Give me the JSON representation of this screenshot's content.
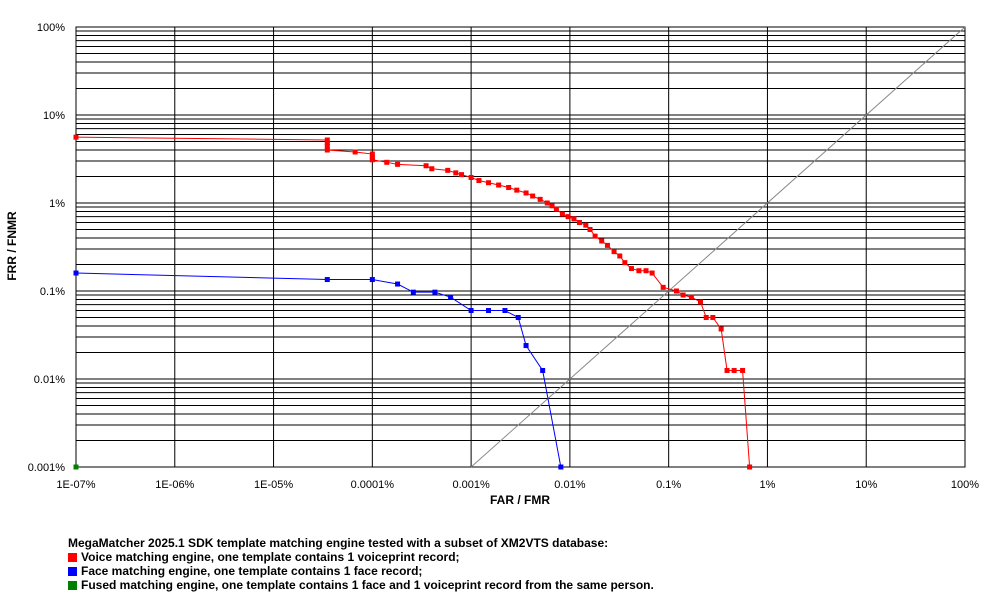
{
  "chart_data": {
    "type": "line",
    "xlabel": "FAR / FMR",
    "ylabel": "FRR / FNMR",
    "x_scale": "log",
    "y_scale": "log",
    "xlim": [
      1e-07,
      100
    ],
    "ylim": [
      0.001,
      100
    ],
    "x_ticks": [
      {
        "value": 1e-07,
        "label": "1E-07%"
      },
      {
        "value": 1e-06,
        "label": "1E-06%"
      },
      {
        "value": 1e-05,
        "label": "1E-05%"
      },
      {
        "value": 0.0001,
        "label": "0.0001%"
      },
      {
        "value": 0.001,
        "label": "0.001%"
      },
      {
        "value": 0.01,
        "label": "0.01%"
      },
      {
        "value": 0.1,
        "label": "0.1%"
      },
      {
        "value": 1,
        "label": "1%"
      },
      {
        "value": 10,
        "label": "10%"
      },
      {
        "value": 100,
        "label": "100%"
      }
    ],
    "y_ticks": [
      {
        "value": 0.001,
        "label": "0.001%"
      },
      {
        "value": 0.01,
        "label": "0.01%"
      },
      {
        "value": 0.1,
        "label": "0.1%"
      },
      {
        "value": 1,
        "label": "1%"
      },
      {
        "value": 10,
        "label": "10%"
      },
      {
        "value": 100,
        "label": "100%"
      }
    ],
    "grid": true,
    "diagonal_reference": true,
    "series": [
      {
        "name": "Voice matching engine, one template contains 1 voiceprint record;",
        "color": "#ff0000",
        "points": [
          [
            1e-07,
            5.6
          ],
          [
            3.5e-05,
            5.2
          ],
          [
            3.5e-05,
            4.8
          ],
          [
            3.5e-05,
            4.4
          ],
          [
            3.5e-05,
            4.0
          ],
          [
            6.7e-05,
            3.8
          ],
          [
            0.0001,
            3.6
          ],
          [
            0.0001,
            3.3
          ],
          [
            0.0001,
            3.1
          ],
          [
            0.00014,
            2.9
          ],
          [
            0.00018,
            2.75
          ],
          [
            0.00035,
            2.65
          ],
          [
            0.0004,
            2.45
          ],
          [
            0.00058,
            2.35
          ],
          [
            0.0007,
            2.2
          ],
          [
            0.0008,
            2.1
          ],
          [
            0.001,
            1.95
          ],
          [
            0.0012,
            1.8
          ],
          [
            0.0015,
            1.7
          ],
          [
            0.0019,
            1.6
          ],
          [
            0.0024,
            1.5
          ],
          [
            0.0029,
            1.4
          ],
          [
            0.0036,
            1.3
          ],
          [
            0.0042,
            1.2
          ],
          [
            0.005,
            1.1
          ],
          [
            0.0059,
            1.0
          ],
          [
            0.0066,
            0.93
          ],
          [
            0.0073,
            0.85
          ],
          [
            0.0084,
            0.75
          ],
          [
            0.0096,
            0.7
          ],
          [
            0.011,
            0.66
          ],
          [
            0.0125,
            0.6
          ],
          [
            0.0145,
            0.56
          ],
          [
            0.016,
            0.5
          ],
          [
            0.018,
            0.42
          ],
          [
            0.021,
            0.37
          ],
          [
            0.024,
            0.33
          ],
          [
            0.028,
            0.28
          ],
          [
            0.032,
            0.25
          ],
          [
            0.036,
            0.21
          ],
          [
            0.042,
            0.18
          ],
          [
            0.05,
            0.17
          ],
          [
            0.059,
            0.17
          ],
          [
            0.068,
            0.16
          ],
          [
            0.088,
            0.11
          ],
          [
            0.12,
            0.1
          ],
          [
            0.14,
            0.09
          ],
          [
            0.17,
            0.085
          ],
          [
            0.21,
            0.075
          ],
          [
            0.24,
            0.05
          ],
          [
            0.28,
            0.05
          ],
          [
            0.34,
            0.037
          ],
          [
            0.39,
            0.0125
          ],
          [
            0.46,
            0.0125
          ],
          [
            0.56,
            0.0125
          ],
          [
            0.66,
            0.001
          ]
        ]
      },
      {
        "name": "Face matching engine, one template contains 1 face record;",
        "color": "#0000ff",
        "points": [
          [
            1e-07,
            0.16
          ],
          [
            3.5e-05,
            0.135
          ],
          [
            0.0001,
            0.135
          ],
          [
            0.00018,
            0.12
          ],
          [
            0.00026,
            0.097
          ],
          [
            0.00043,
            0.097
          ],
          [
            0.00062,
            0.085
          ],
          [
            0.001,
            0.06
          ],
          [
            0.0015,
            0.06
          ],
          [
            0.0022,
            0.06
          ],
          [
            0.003,
            0.05
          ],
          [
            0.0036,
            0.024
          ],
          [
            0.0053,
            0.0125
          ],
          [
            0.0081,
            0.001
          ]
        ]
      },
      {
        "name": "Fused matching engine, one template contains 1 face and 1 voiceprint record from the same person.",
        "color": "#008000",
        "points": [
          [
            1e-07,
            0.001
          ]
        ]
      }
    ],
    "legend": {
      "title": "MegaMatcher 2025.1 SDK template matching engine tested with a subset of XM2VTS database:",
      "position": "bottom-left"
    }
  }
}
